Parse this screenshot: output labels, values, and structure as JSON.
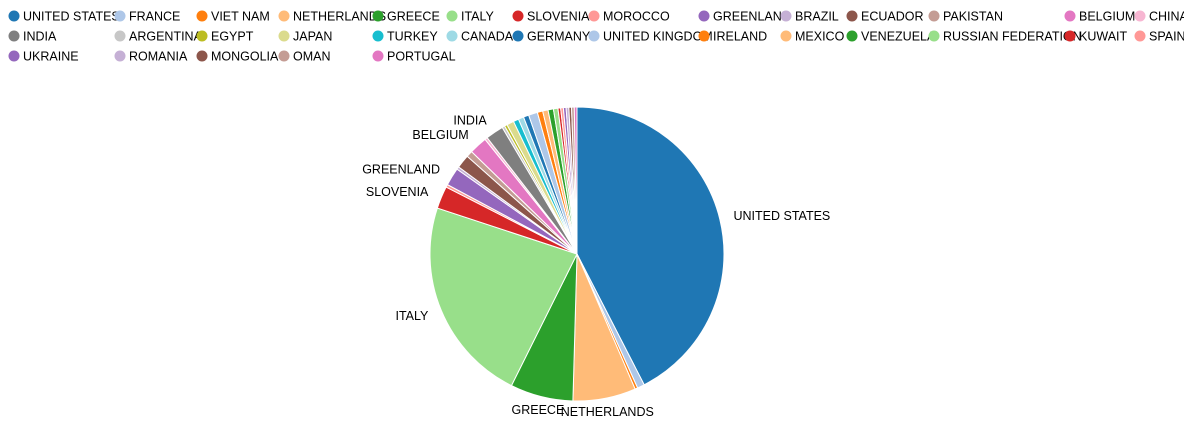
{
  "chart_data": {
    "type": "pie",
    "title": "",
    "legend_position": "top",
    "slices": [
      {
        "label": "UNITED STATES",
        "value": 43.0,
        "color": "#1f77b4"
      },
      {
        "label": "FRANCE",
        "value": 0.8,
        "color": "#aec7e8"
      },
      {
        "label": "VIET NAM",
        "value": 0.3,
        "color": "#ff7f0e"
      },
      {
        "label": "NETHERLANDS",
        "value": 7.0,
        "color": "#ffbb78"
      },
      {
        "label": "GREECE",
        "value": 7.0,
        "color": "#2ca02c"
      },
      {
        "label": "ITALY",
        "value": 23.0,
        "color": "#98df8a"
      },
      {
        "label": "SLOVENIA",
        "value": 2.5,
        "color": "#d62728"
      },
      {
        "label": "MOROCCO",
        "value": 0.3,
        "color": "#ff9896"
      },
      {
        "label": "GREENLAND",
        "value": 2.0,
        "color": "#9467bd"
      },
      {
        "label": "BRAZIL",
        "value": 0.3,
        "color": "#c5b0d5"
      },
      {
        "label": "ECUADOR",
        "value": 1.5,
        "color": "#8c564b"
      },
      {
        "label": "PAKISTAN",
        "value": 0.7,
        "color": "#c49c94"
      },
      {
        "label": "BELGIUM",
        "value": 2.0,
        "color": "#e377c2"
      },
      {
        "label": "CHINA",
        "value": 0.3,
        "color": "#f7b6d2"
      },
      {
        "label": "INDIA",
        "value": 2.0,
        "color": "#7f7f7f"
      },
      {
        "label": "ARGENTINA",
        "value": 0.3,
        "color": "#c7c7c7"
      },
      {
        "label": "EGYPT",
        "value": 0.3,
        "color": "#bcbd22"
      },
      {
        "label": "JAPAN",
        "value": 0.8,
        "color": "#dbdb8d"
      },
      {
        "label": "TURKEY",
        "value": 0.6,
        "color": "#17becf"
      },
      {
        "label": "CANADA",
        "value": 0.6,
        "color": "#9edae5"
      },
      {
        "label": "GERMANY",
        "value": 0.6,
        "color": "#1f77b4"
      },
      {
        "label": "UNITED KINGDOM",
        "value": 1.0,
        "color": "#aec7e8"
      },
      {
        "label": "IRELAND",
        "value": 0.6,
        "color": "#ff7f0e"
      },
      {
        "label": "MEXICO",
        "value": 0.6,
        "color": "#ffbb78"
      },
      {
        "label": "VENEZUELA",
        "value": 0.6,
        "color": "#2ca02c"
      },
      {
        "label": "RUSSIAN FEDERATION",
        "value": 0.5,
        "color": "#98df8a"
      },
      {
        "label": "KUWAIT",
        "value": 0.3,
        "color": "#d62728"
      },
      {
        "label": "SPAIN",
        "value": 0.3,
        "color": "#ff9896"
      },
      {
        "label": "UKRAINE",
        "value": 0.3,
        "color": "#9467bd"
      },
      {
        "label": "ROMANIA",
        "value": 0.3,
        "color": "#c5b0d5"
      },
      {
        "label": "MONGOLIA",
        "value": 0.3,
        "color": "#8c564b"
      },
      {
        "label": "OMAN",
        "value": 0.3,
        "color": "#c49c94"
      },
      {
        "label": "PORTUGAL",
        "value": 0.3,
        "color": "#e377c2"
      }
    ],
    "slice_labels_shown": [
      "UNITED STATES",
      "NETHERLANDS",
      "GREECE",
      "ITALY",
      "SLOVENIA",
      "GREENLAND",
      "BELGIUM",
      "INDIA"
    ]
  }
}
